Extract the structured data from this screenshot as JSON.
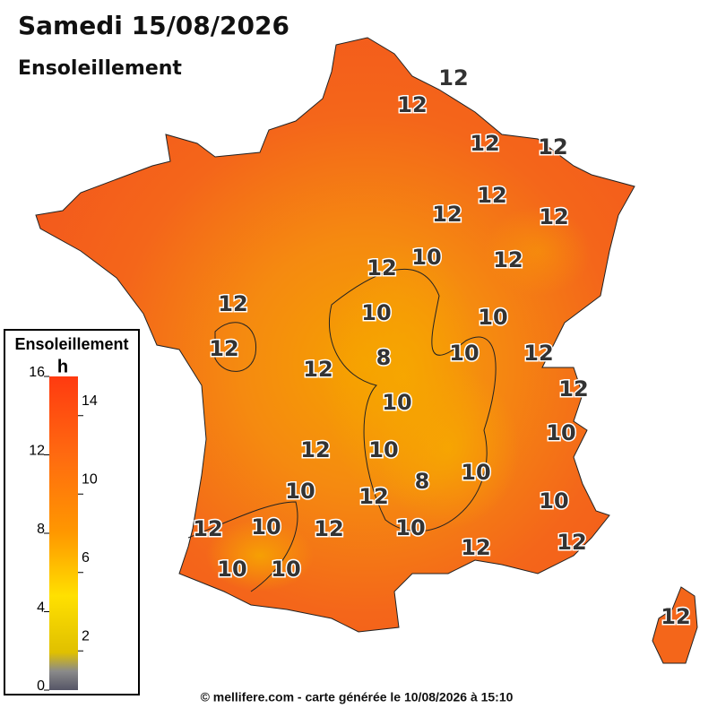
{
  "header": {
    "title": "Samedi 15/08/2026",
    "subtitle": "Ensoleillement"
  },
  "legend": {
    "title": "Ensoleillement",
    "unit": "h",
    "range": [
      0,
      16
    ],
    "left_ticks": [
      0,
      4,
      8,
      12,
      16
    ],
    "right_ticks": [
      2,
      6,
      10,
      14
    ]
  },
  "contour_labels": [
    12,
    12,
    12,
    12,
    12,
    12,
    12,
    10,
    12,
    12,
    12,
    10,
    10,
    12,
    8,
    10,
    12,
    12,
    12,
    10,
    10,
    12,
    10,
    10,
    8,
    10,
    12,
    10,
    12,
    10,
    12,
    10,
    12,
    12,
    10,
    10,
    12
  ],
  "footer": "© mellifere.com - carte générée le 10/08/2026 à 15:10"
}
